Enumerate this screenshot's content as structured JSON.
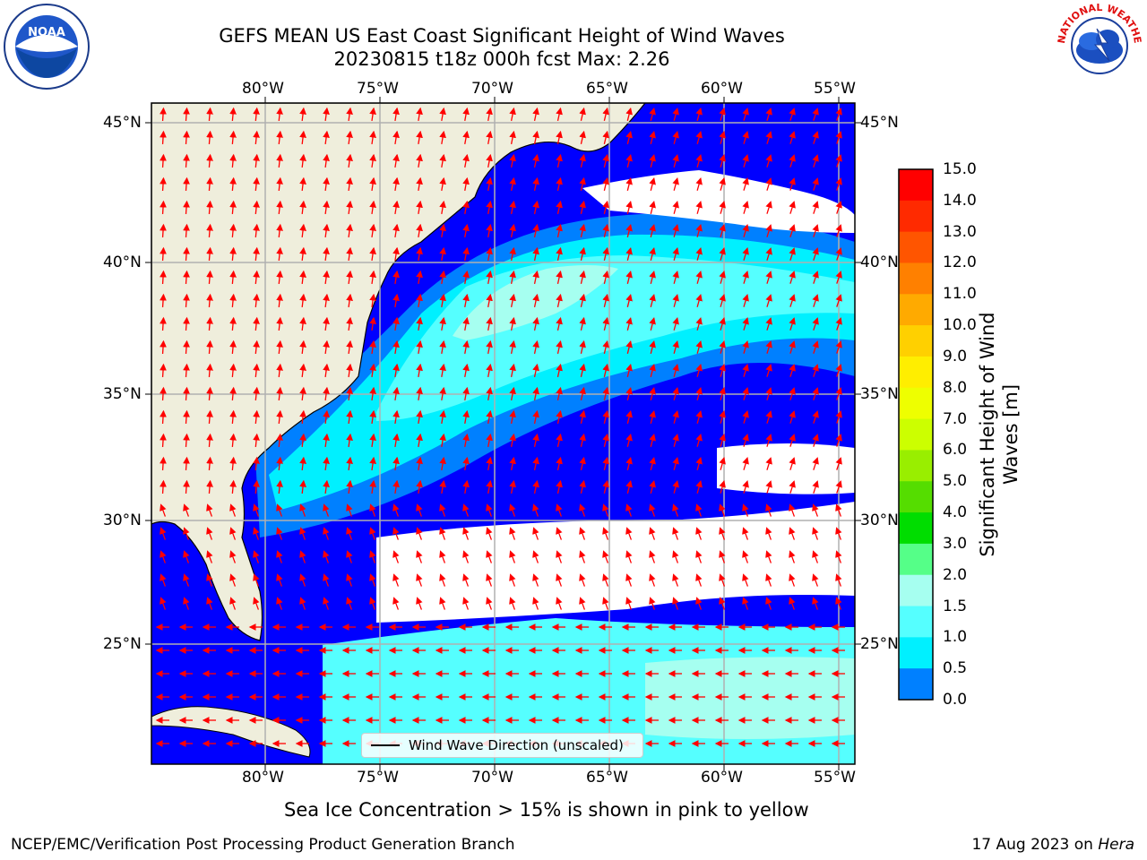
{
  "title": {
    "line1": "GEFS MEAN US East Coast Significant Height of Wind Waves",
    "line2": "20230815 t18z 000h fcst   Max: 2.26"
  },
  "logos": {
    "left": {
      "icon": "noaa-logo-icon",
      "text": "NOAA"
    },
    "right": {
      "icon": "national-weather-service-logo-icon",
      "text": "NATIONAL WEATHER SERVICE"
    }
  },
  "map": {
    "lon_labels": [
      "80°W",
      "75°W",
      "70°W",
      "65°W",
      "60°W",
      "55°W"
    ],
    "lat_labels": [
      "45°N",
      "40°N",
      "35°N",
      "30°N",
      "25°N"
    ],
    "extent": {
      "lon": [
        -85,
        -54.5
      ],
      "lat": [
        20.5,
        46
      ]
    },
    "colors": {
      "land": "#efeedc",
      "grid": "#b0b0b0",
      "arrow": "#ff0000",
      "no_data": "#ffffff"
    }
  },
  "legend": {
    "label": "Wind Wave Direction (unscaled)"
  },
  "colorbar": {
    "title": "Significant Height of Wind Waves [m]",
    "title_line1": "Significant Height of Wind",
    "title_line2": "Waves [m]",
    "tick_labels": [
      "15.0",
      "14.0",
      "13.0",
      "12.0",
      "11.0",
      "10.0",
      "9.0",
      "8.0",
      "7.0",
      "6.0",
      "5.0",
      "4.0",
      "3.0",
      "2.0",
      "1.5",
      "1.0",
      "0.5",
      "0.0"
    ],
    "colors": [
      "#ff0000",
      "#ff2a00",
      "#ff5500",
      "#ff8000",
      "#ffaa00",
      "#ffd000",
      "#ffee00",
      "#eeff00",
      "#ccff00",
      "#99ee00",
      "#55dd00",
      "#00dd00",
      "#55ff88",
      "#a6fff0",
      "#55ffff",
      "#00f0ff",
      "#0080ff",
      "#0000ff"
    ]
  },
  "note": "Sea Ice Concentration > 15% is shown in pink to yellow",
  "footer": {
    "left": "NCEP/EMC/Verification Post Processing Product Generation Branch",
    "right_prefix": "17 Aug 2023 on ",
    "right_host": "Hera"
  }
}
